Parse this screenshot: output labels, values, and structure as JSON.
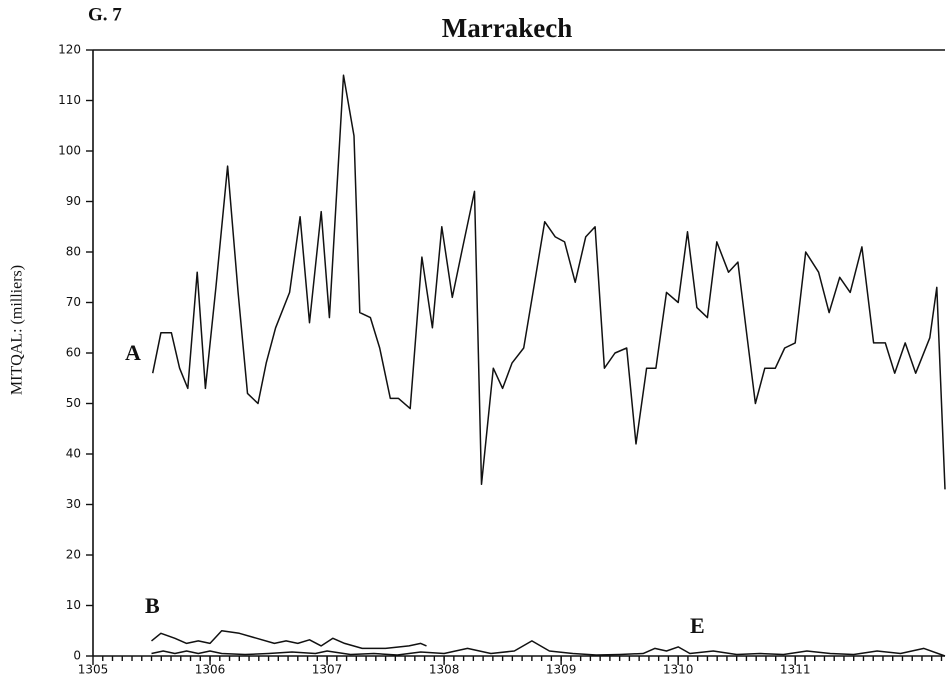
{
  "chart_data": {
    "type": "line",
    "figure_label": "G. 7",
    "title": "Marrakech",
    "ylabel": "MITQAL: (milliers)",
    "xlim": [
      1305,
      1312.28
    ],
    "xticks": [
      1305,
      1306,
      1307,
      1308,
      1309,
      1310,
      1311
    ],
    "ylim": [
      0,
      120
    ],
    "yticks": [
      0,
      10,
      20,
      30,
      40,
      50,
      60,
      70,
      80,
      90,
      100,
      110,
      120
    ],
    "series": [
      {
        "name": "A",
        "color": "#111111",
        "x": [
          1305.51,
          1305.58,
          1305.67,
          1305.74,
          1305.81,
          1305.89,
          1305.96,
          1306.05,
          1306.15,
          1306.24,
          1306.32,
          1306.41,
          1306.48,
          1306.56,
          1306.68,
          1306.77,
          1306.85,
          1306.95,
          1307.02,
          1307.14,
          1307.23,
          1307.28,
          1307.37,
          1307.45,
          1307.54,
          1307.61,
          1307.71,
          1307.81,
          1307.9,
          1307.98,
          1308.07,
          1308.15,
          1308.26,
          1308.32,
          1308.42,
          1308.5,
          1308.58,
          1308.68,
          1308.76,
          1308.86,
          1308.95,
          1309.03,
          1309.12,
          1309.21,
          1309.29,
          1309.37,
          1309.46,
          1309.56,
          1309.64,
          1309.73,
          1309.81,
          1309.9,
          1310.0,
          1310.08,
          1310.16,
          1310.25,
          1310.33,
          1310.43,
          1310.51,
          1310.59,
          1310.66,
          1310.74,
          1310.83,
          1310.91,
          1311.0,
          1311.09,
          1311.2,
          1311.29,
          1311.38,
          1311.47,
          1311.57,
          1311.67,
          1311.77,
          1311.85,
          1311.94,
          1312.03,
          1312.15,
          1312.21,
          1312.28
        ],
        "values": [
          56,
          64,
          64,
          57,
          53,
          76,
          53,
          73,
          97,
          72,
          52,
          50,
          58,
          65,
          72,
          87,
          66,
          88,
          67,
          115,
          103,
          68,
          67,
          61,
          51,
          51,
          49,
          79,
          65,
          85,
          71,
          80,
          92,
          34,
          57,
          53,
          58,
          61,
          72,
          86,
          83,
          82,
          74,
          83,
          85,
          57,
          60,
          61,
          42,
          57,
          57,
          72,
          70,
          84,
          69,
          67,
          82,
          76,
          78,
          63,
          50,
          57,
          57,
          61,
          62,
          80,
          76,
          68,
          75,
          72,
          81,
          62,
          62,
          56,
          62,
          56,
          63,
          73,
          33
        ]
      },
      {
        "name": "B",
        "color": "#111111",
        "x": [
          1305.5,
          1305.58,
          1305.7,
          1305.8,
          1305.9,
          1306.0,
          1306.1,
          1306.25,
          1306.4,
          1306.55,
          1306.65,
          1306.75,
          1306.85,
          1306.95,
          1307.05,
          1307.15,
          1307.3,
          1307.5,
          1307.7,
          1307.8,
          1307.85
        ],
        "values": [
          3,
          4.5,
          3.5,
          2.5,
          3,
          2.5,
          5,
          4.5,
          3.5,
          2.5,
          3,
          2.5,
          3.2,
          2,
          3.5,
          2.5,
          1.5,
          1.5,
          2,
          2.5,
          2
        ]
      },
      {
        "name": "E",
        "color": "#111111",
        "x": [
          1305.5,
          1305.6,
          1305.7,
          1305.8,
          1305.9,
          1306.0,
          1306.1,
          1306.3,
          1306.5,
          1306.7,
          1306.9,
          1307.0,
          1307.2,
          1307.4,
          1307.6,
          1307.8,
          1308.0,
          1308.2,
          1308.4,
          1308.6,
          1308.75,
          1308.9,
          1309.1,
          1309.3,
          1309.5,
          1309.7,
          1309.8,
          1309.9,
          1310.0,
          1310.1,
          1310.3,
          1310.5,
          1310.7,
          1310.9,
          1311.1,
          1311.3,
          1311.5,
          1311.7,
          1311.9,
          1312.1,
          1312.28
        ],
        "values": [
          0.5,
          1,
          0.5,
          1,
          0.5,
          1,
          0.5,
          0.3,
          0.5,
          0.8,
          0.5,
          1,
          0.3,
          0.5,
          0.2,
          0.8,
          0.5,
          1.5,
          0.5,
          1,
          3,
          1,
          0.5,
          0.2,
          0.3,
          0.5,
          1.5,
          1,
          1.8,
          0.5,
          1,
          0.3,
          0.5,
          0.3,
          1,
          0.5,
          0.3,
          1,
          0.5,
          1.5,
          0
        ]
      }
    ]
  }
}
